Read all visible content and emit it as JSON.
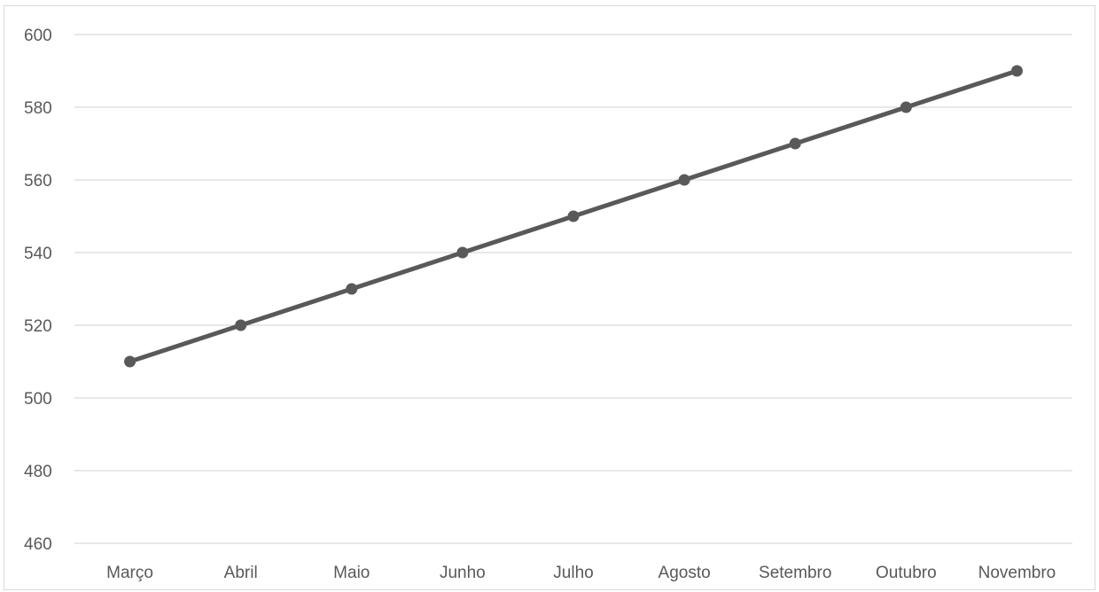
{
  "chart_data": {
    "type": "line",
    "title": "",
    "xlabel": "",
    "ylabel": "",
    "categories": [
      "Março",
      "Abril",
      "Maio",
      "Junho",
      "Julho",
      "Agosto",
      "Setembro",
      "Outubro",
      "Novembro"
    ],
    "series": [
      {
        "values": [
          510,
          520,
          530,
          540,
          550,
          560,
          570,
          580,
          590
        ],
        "color": "#595959"
      }
    ],
    "ylim": [
      460,
      600
    ],
    "y_ticks": [
      "460",
      "480",
      "500",
      "520",
      "540",
      "560",
      "580",
      "600"
    ],
    "grid": true,
    "legend": "none",
    "colors": {
      "gridline": "#d9d9d9",
      "line": "#595959",
      "text": "#595959"
    }
  }
}
